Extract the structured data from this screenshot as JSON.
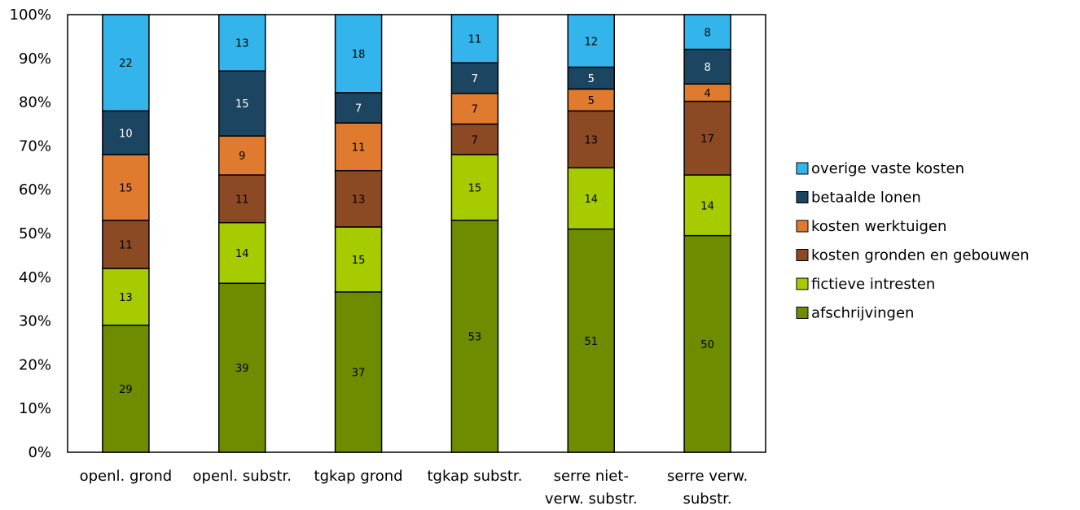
{
  "chart_data": {
    "type": "bar",
    "stacked": true,
    "percent": true,
    "categories": [
      [
        "openl. grond"
      ],
      [
        "openl. substr."
      ],
      [
        "tgkap grond"
      ],
      [
        "tgkap substr."
      ],
      [
        "serre niet-",
        "verw. substr."
      ],
      [
        "serre verw.",
        "substr."
      ]
    ],
    "ylim": [
      0,
      100
    ],
    "yticks": [
      "0%",
      "10%",
      "20%",
      "30%",
      "40%",
      "50%",
      "60%",
      "70%",
      "80%",
      "90%",
      "100%"
    ],
    "legend_position": "right",
    "series": [
      {
        "name": "afschrijvingen",
        "color": "#6f8c00",
        "values": [
          29,
          39,
          37,
          53,
          51,
          50
        ]
      },
      {
        "name": "fictieve intresten",
        "color": "#a6cc00",
        "values": [
          13,
          14,
          15,
          15,
          14,
          14
        ]
      },
      {
        "name": "kosten gronden en gebouwen",
        "color": "#8b4a23",
        "values": [
          11,
          11,
          13,
          7,
          13,
          17
        ]
      },
      {
        "name": "kosten werktuigen",
        "color": "#e07a2e",
        "values": [
          15,
          9,
          11,
          7,
          5,
          4
        ]
      },
      {
        "name": "betaalde lonen",
        "color": "#1b4560",
        "values": [
          10,
          15,
          7,
          7,
          5,
          8
        ]
      },
      {
        "name": "overige vaste kosten",
        "color": "#33b4ea",
        "values": [
          22,
          13,
          18,
          11,
          12,
          8
        ]
      }
    ]
  }
}
